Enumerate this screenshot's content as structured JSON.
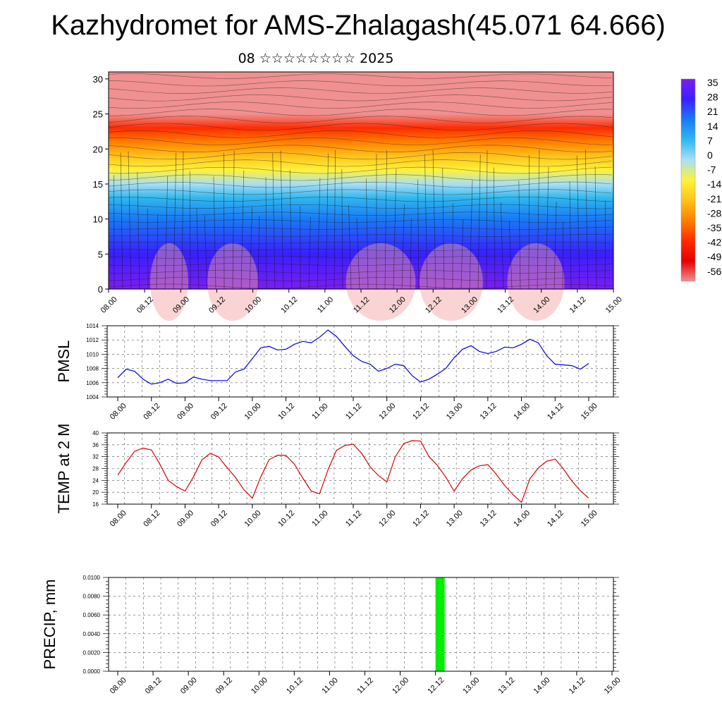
{
  "title": "Kazhydromet for AMS-Zhalagash(45.071 64.666)",
  "subtitle": "08 ☆☆☆☆☆☆☆☆ 2025",
  "colors": {
    "pmsl_line": "#0000dd",
    "temp_line": "#dd0000",
    "precip_bar": "#00ee00",
    "colorbar": [
      "#7a1ff0",
      "#3a1fff",
      "#1a7af5",
      "#2fb7f0",
      "#a9dff5",
      "#fff23a",
      "#ffc21a",
      "#ff7f00",
      "#ff2b00",
      "#e60000",
      "#f09090"
    ]
  },
  "chart_data": [
    {
      "type": "heatmap",
      "name": "upper-air temperature and wind cross-section",
      "x_ticks": [
        "08.00",
        "08.12",
        "09.00",
        "09.12",
        "10.00",
        "10.12",
        "11.00",
        "11.12",
        "12.00",
        "12.12",
        "13.00",
        "13.12",
        "14.00",
        "14.12",
        "15.00"
      ],
      "y_ticks": [
        "0",
        "5",
        "10",
        "15",
        "20",
        "25",
        "30"
      ],
      "ylim": [
        0,
        31
      ],
      "colorbar_labels": [
        "35",
        "28",
        "21",
        "14",
        "7",
        "0",
        "-7",
        "-14",
        "-21",
        "-28",
        "-35",
        "-42",
        "-49",
        "-56"
      ],
      "temperature_profile": {
        "heights": [
          0,
          5,
          10,
          13,
          15,
          17,
          19,
          21,
          23,
          25,
          27,
          30
        ],
        "values": [
          33,
          28,
          20,
          7,
          -4,
          -10,
          -24,
          -33,
          -40,
          -52,
          -56,
          -58
        ]
      }
    },
    {
      "type": "line",
      "ylabel": "PMSL",
      "x_ticks": [
        "08.00",
        "08.12",
        "09.00",
        "09.12",
        "10.00",
        "10.12",
        "11.00",
        "11.12",
        "12.00",
        "12.12",
        "13.00",
        "13.12",
        "14.00",
        "14.12",
        "15.00"
      ],
      "y_ticks": [
        "1004",
        "1006",
        "1008",
        "1010",
        "1012",
        "1014"
      ],
      "ylim": [
        1004,
        1014
      ],
      "series": [
        {
          "values": [
            1006.7,
            1007.9,
            1007.6,
            1006.5,
            1005.8,
            1006.0,
            1006.5,
            1005.9,
            1006.0,
            1006.8,
            1006.5,
            1006.3,
            1006.3,
            1006.3,
            1007.5,
            1007.9,
            1009.4,
            1010.9,
            1011.1,
            1010.6,
            1010.7,
            1011.4,
            1011.8,
            1011.6,
            1012.4,
            1013.4,
            1012.5,
            1011.1,
            1009.8,
            1009.0,
            1008.6,
            1007.6,
            1008.0,
            1008.6,
            1008.4,
            1007.0,
            1006.1,
            1006.5,
            1007.2,
            1008.0,
            1009.5,
            1010.7,
            1011.2,
            1010.4,
            1010.1,
            1010.4,
            1011.0,
            1010.9,
            1011.4,
            1012.1,
            1011.6,
            1009.8,
            1008.6,
            1008.5,
            1008.4,
            1007.9,
            1008.7
          ]
        }
      ]
    },
    {
      "type": "line",
      "ylabel": "TEMP at 2 M",
      "x_ticks": [
        "08.00",
        "08.12",
        "09.00",
        "09.12",
        "10.00",
        "10.12",
        "11.00",
        "11.12",
        "12.00",
        "12.12",
        "13.00",
        "13.12",
        "14.00",
        "14.12",
        "15.00"
      ],
      "y_ticks": [
        "16",
        "20",
        "24",
        "28",
        "32",
        "36",
        "40"
      ],
      "ylim": [
        16,
        40
      ],
      "series": [
        {
          "values": [
            25.8,
            30.0,
            33.8,
            34.9,
            34.3,
            29.5,
            24.0,
            21.9,
            20.4,
            25.2,
            30.9,
            33.1,
            31.9,
            28.3,
            25.0,
            20.9,
            18.0,
            25.2,
            31.0,
            32.5,
            32.4,
            29.5,
            24.8,
            20.4,
            19.5,
            27.6,
            34.1,
            35.8,
            36.2,
            33.1,
            28.6,
            25.6,
            23.5,
            32.0,
            36.4,
            37.4,
            37.3,
            32.0,
            29.1,
            25.1,
            20.4,
            24.6,
            27.5,
            28.9,
            29.3,
            26.1,
            22.3,
            19.2,
            16.6,
            24.5,
            28.2,
            30.5,
            31.2,
            27.8,
            23.8,
            20.5,
            18.0
          ]
        }
      ]
    },
    {
      "type": "bar",
      "ylabel": "PRECIP, mm",
      "x_ticks": [
        "08.00",
        "08.12",
        "09.00",
        "09.12",
        "10.00",
        "10.12",
        "11.00",
        "11.12",
        "12.00",
        "12.12",
        "13.00",
        "13.12",
        "14.00",
        "14.12",
        "15.00"
      ],
      "y_ticks": [
        "0.0000",
        "0.0020",
        "0.0040",
        "0.0060",
        "0.0080",
        "0.0100"
      ],
      "ylim": [
        0,
        0.01
      ],
      "bars": [
        {
          "at": "12.12",
          "value": 0.01
        }
      ]
    }
  ]
}
